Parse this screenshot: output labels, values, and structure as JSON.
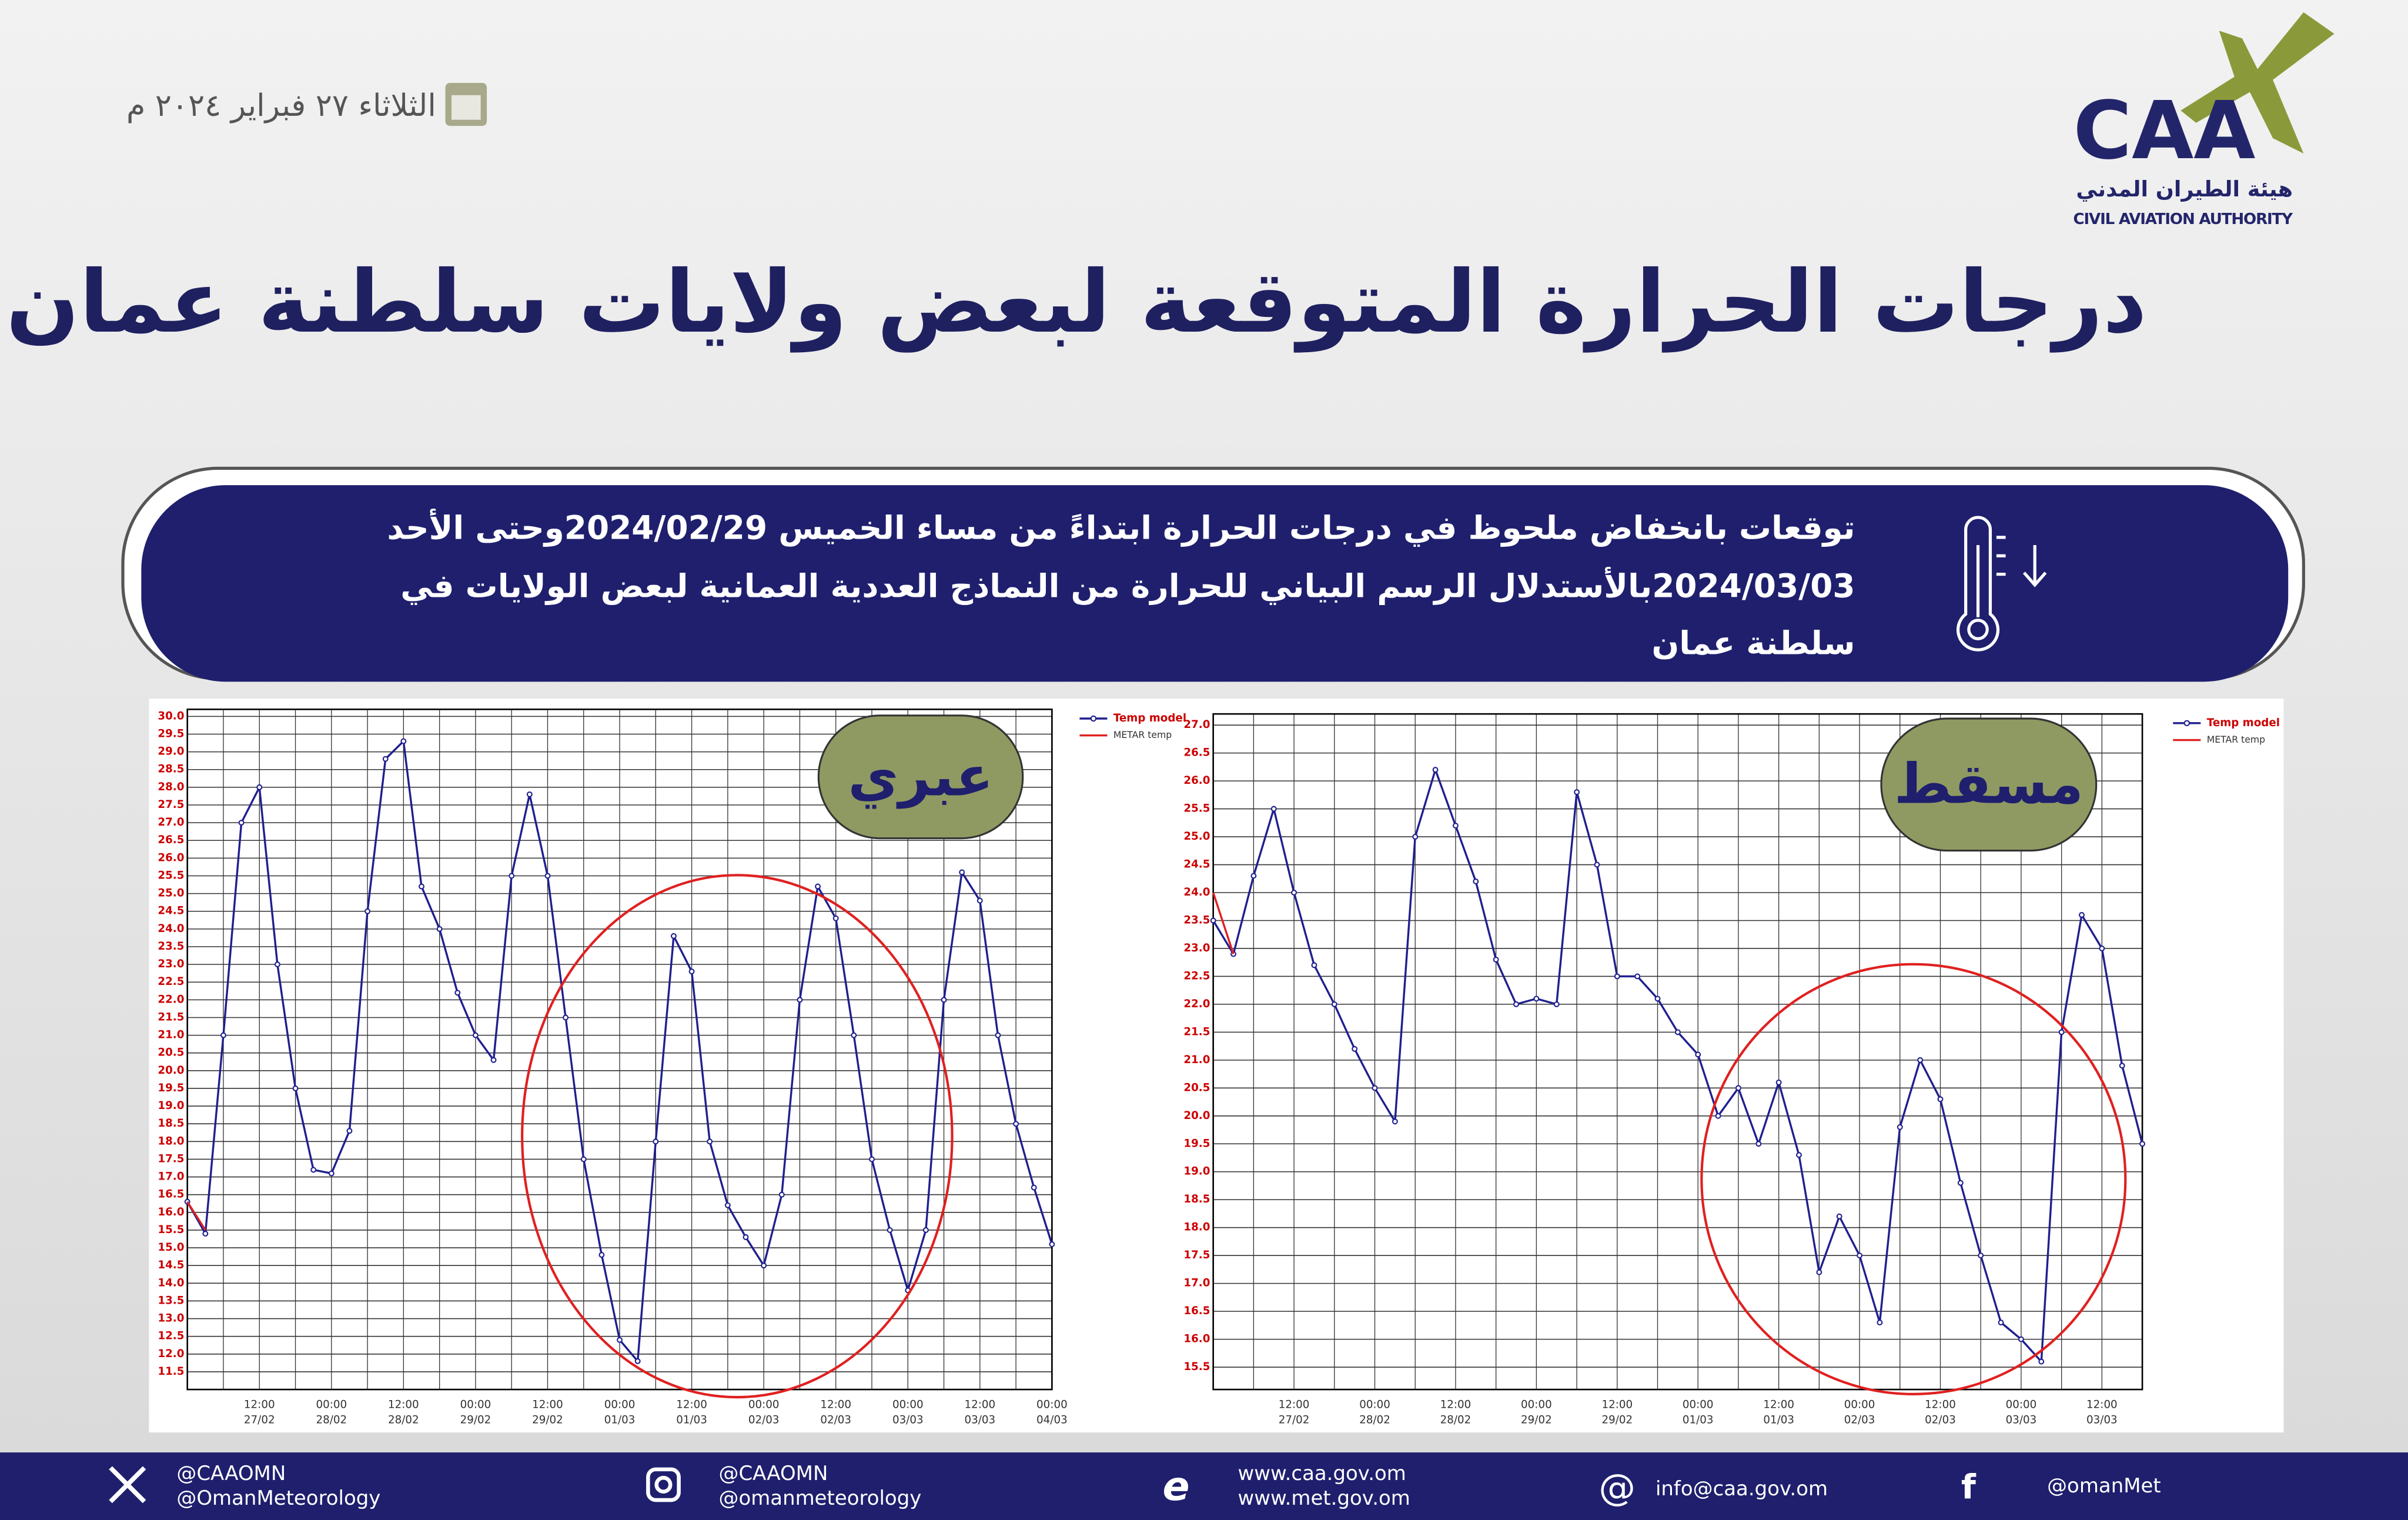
{
  "header": {
    "date": "الثلاثاء ٢٧ فبراير ٢٠٢٤ م",
    "title": "درجات الحرارة المتوقعة لبعض ولايات سلطنة عمان",
    "logo": {
      "abbr": "CAA",
      "arabic": "هيئة الطيران المدني",
      "english": "CIVIL AVIATION AUTHORITY"
    }
  },
  "banner": {
    "lines": [
      "توقعات بانخفاض ملحوظ في درجات الحرارة ابتداءً من مساء الخميس 2024/02/29وحتى الأحد",
      "2024/03/03بالأستدلال الرسم البياني للحرارة من  النماذج العددية العمانية لبعض الولايات في",
      "سلطنة عمان"
    ]
  },
  "chart_data": [
    {
      "type": "line",
      "title": "عبري",
      "categories": [
        null,
        null,
        null,
        null,
        "12:00",
        null,
        null,
        null,
        "00:00",
        null,
        null,
        null,
        "12:00",
        null,
        null,
        null,
        "00:00",
        null,
        null,
        null,
        "12:00",
        null,
        null,
        null,
        "00:00",
        null,
        null,
        null,
        "12:00",
        null,
        null,
        null,
        "00:00",
        null,
        null,
        null,
        "12:00",
        null,
        null,
        null,
        "00:00",
        null,
        null,
        null,
        "12:00",
        null,
        null,
        null,
        "00:00"
      ],
      "dates": [
        null,
        null,
        null,
        null,
        "27/02",
        null,
        null,
        null,
        "28/02",
        null,
        null,
        null,
        "28/02",
        null,
        null,
        null,
        "29/02",
        null,
        null,
        null,
        "29/02",
        null,
        null,
        null,
        "01/03",
        null,
        null,
        null,
        "01/03",
        null,
        null,
        null,
        "02/03",
        null,
        null,
        null,
        "02/03",
        null,
        null,
        null,
        "03/03",
        null,
        null,
        null,
        "03/03",
        null,
        null,
        null,
        "04/03"
      ],
      "series": [
        {
          "name": "Temp model",
          "color": "#1f1f8f",
          "values": [
            16.3,
            15.4,
            21,
            27,
            28,
            23,
            19.5,
            17.2,
            17.1,
            18.3,
            24.5,
            28.8,
            29.3,
            25.2,
            24,
            22.2,
            21,
            20.3,
            25.5,
            27.8,
            25.5,
            21.5,
            17.5,
            14.8,
            12.4,
            11.8,
            18,
            23.8,
            22.8,
            18,
            16.2,
            15.3,
            14.5,
            16.5,
            22,
            25.2,
            24.3,
            21,
            17.5,
            15.5,
            13.8,
            15.5,
            22,
            25.6,
            24.8,
            21,
            18.5,
            16.7,
            15.1
          ]
        },
        {
          "name": "METAR temp",
          "color": "#e02020",
          "values": [
            16.3,
            15.5,
            null,
            null,
            null,
            null,
            null,
            null,
            null,
            null,
            null,
            null,
            null,
            null,
            null,
            null,
            null,
            null,
            null,
            null,
            null,
            null,
            null,
            null,
            null,
            null,
            null,
            null,
            null,
            null,
            null,
            null,
            null,
            null,
            null,
            null,
            null,
            null,
            null,
            null,
            null,
            null,
            null,
            null,
            null,
            null,
            null,
            null,
            null
          ]
        }
      ],
      "ylim": [
        11,
        30.2
      ],
      "yticks": [
        {
          "value": 30,
          "label": "30.0"
        },
        29.5,
        {
          "value": 29,
          "label": "29.0"
        },
        28.5,
        {
          "value": 28,
          "label": "28.0"
        },
        27.5,
        {
          "value": 27,
          "label": "27.0"
        },
        26.5,
        {
          "value": 26,
          "label": "26.0"
        },
        25.5,
        {
          "value": 25,
          "label": "25.0"
        },
        24.5,
        {
          "value": 24,
          "label": "24.0"
        },
        23.5,
        {
          "value": 23,
          "label": "23.0"
        },
        22.5,
        {
          "value": 22,
          "label": "22.0"
        },
        21.5,
        {
          "value": 21,
          "label": "21.0"
        },
        20.5,
        {
          "value": 20,
          "label": "20.0"
        },
        19.5,
        {
          "value": 19,
          "label": "19.0"
        },
        18.5,
        {
          "value": 18,
          "label": "18.0"
        },
        17.5,
        {
          "value": 17,
          "label": "17.0"
        },
        16.5,
        {
          "value": 16,
          "label": "16.0"
        },
        15.5,
        {
          "value": 15,
          "label": "15.0"
        },
        14.5,
        {
          "value": 14,
          "label": "14.0"
        },
        13.5,
        {
          "value": 13,
          "label": "13.0"
        },
        12.5,
        {
          "value": 12,
          "label": "12.0"
        },
        11.5
      ],
      "grid": true,
      "legend": "top-right"
    },
    {
      "type": "line",
      "title": "مسقط",
      "categories": [
        null,
        null,
        null,
        null,
        "12:00",
        null,
        null,
        null,
        "00:00",
        null,
        null,
        null,
        "12:00",
        null,
        null,
        null,
        "00:00",
        null,
        null,
        null,
        "12:00",
        null,
        null,
        null,
        "00:00",
        null,
        null,
        null,
        "12:00",
        null,
        null,
        null,
        "00:00",
        null,
        null,
        null,
        "12:00",
        null,
        null,
        null,
        "00:00",
        null,
        null,
        null,
        "12:00",
        null,
        null
      ],
      "dates": [
        null,
        null,
        null,
        null,
        "27/02",
        null,
        null,
        null,
        "28/02",
        null,
        null,
        null,
        "28/02",
        null,
        null,
        null,
        "29/02",
        null,
        null,
        null,
        "29/02",
        null,
        null,
        null,
        "01/03",
        null,
        null,
        null,
        "01/03",
        null,
        null,
        null,
        "02/03",
        null,
        null,
        null,
        "02/03",
        null,
        null,
        null,
        "03/03",
        null,
        null,
        null,
        "03/03",
        null,
        null
      ],
      "series": [
        {
          "name": "Temp model",
          "color": "#1f1f8f",
          "values": [
            23.5,
            22.9,
            24.3,
            25.5,
            24,
            22.7,
            22,
            21.2,
            20.5,
            19.9,
            25,
            26.2,
            25.2,
            24.2,
            22.8,
            22,
            22.1,
            22,
            25.8,
            24.5,
            22.5,
            22.5,
            22.1,
            21.5,
            21.1,
            20,
            20.5,
            19.5,
            20.6,
            19.3,
            17.2,
            18.2,
            17.5,
            16.3,
            19.8,
            21,
            20.3,
            18.8,
            17.5,
            16.3,
            16,
            15.6,
            21.5,
            23.6,
            23,
            20.9,
            19.5
          ]
        },
        {
          "name": "METAR temp",
          "color": "#e02020",
          "values": [
            24,
            22.9,
            null,
            null,
            null,
            null,
            null,
            null,
            null,
            null,
            null,
            null,
            null,
            null,
            null,
            null,
            null,
            null,
            null,
            null,
            null,
            null,
            null,
            null,
            null,
            null,
            null,
            null,
            null,
            null,
            null,
            null,
            null,
            null,
            null,
            null,
            null,
            null,
            null,
            null,
            null,
            null,
            null,
            null,
            null,
            null,
            null
          ]
        }
      ],
      "ylim": [
        15.1,
        27.2
      ],
      "yticks": [
        {
          "value": 27,
          "label": "27.0"
        },
        26.5,
        {
          "value": 26,
          "label": "26.0"
        },
        25.5,
        {
          "value": 25,
          "label": "25.0"
        },
        24.5,
        {
          "value": 24,
          "label": "24.0"
        },
        23.5,
        {
          "value": 23,
          "label": "23.0"
        },
        22.5,
        {
          "value": 22,
          "label": "22.0"
        },
        21.5,
        {
          "value": 21,
          "label": "21.0"
        },
        20.5,
        {
          "value": 20,
          "label": "20.0"
        },
        19.5,
        {
          "value": 19,
          "label": "19.0"
        },
        18.5,
        {
          "value": 18,
          "label": "18.0"
        },
        17.5,
        {
          "value": 17,
          "label": "17.0"
        },
        16.5,
        {
          "value": 16,
          "label": "16.0"
        },
        15.5
      ],
      "grid": true,
      "legend": "top-right"
    }
  ],
  "footer": {
    "x": [
      "@CAAOMN",
      "@OmanMeteorology"
    ],
    "instagram": [
      "@CAAOMN",
      "@omanmeteorology"
    ],
    "web": [
      "www.caa.gov.om",
      "www.met.gov.om"
    ],
    "email": "info@caa.gov.om",
    "facebook": "@omanMet"
  }
}
